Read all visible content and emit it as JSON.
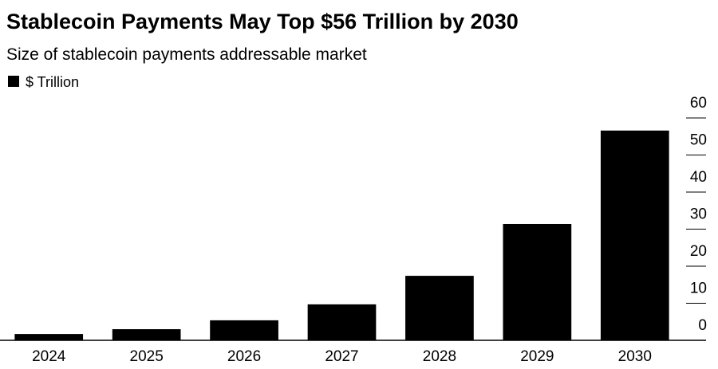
{
  "chart_data": {
    "type": "bar",
    "title": "Stablecoin Payments May Top $56 Trillion by 2030",
    "subtitle": "Size of stablecoin payments addressable market",
    "legend": "$ Trillion",
    "categories": [
      "2024",
      "2025",
      "2026",
      "2027",
      "2028",
      "2029",
      "2030"
    ],
    "values": [
      1.7,
      3.0,
      5.4,
      9.7,
      17.4,
      31.4,
      56.6
    ],
    "color": "#000000",
    "ylim": [
      0,
      60
    ],
    "yticks": [
      0,
      10,
      20,
      30,
      40,
      50,
      60
    ]
  }
}
